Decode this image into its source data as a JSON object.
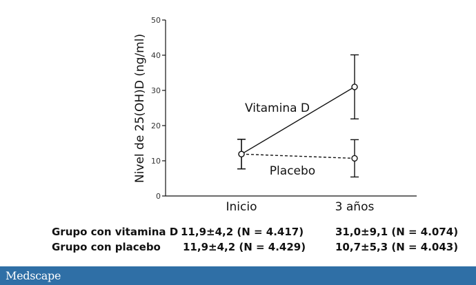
{
  "chart_data": {
    "type": "line",
    "ylabel": "Nivel de 25(OH)D (ng/ml)",
    "xlabel": "",
    "categories": [
      "Inicio",
      "3 años"
    ],
    "ylim": [
      0,
      50
    ],
    "yticks": [
      0,
      10,
      20,
      30,
      40,
      50
    ],
    "series": [
      {
        "name": "Vitamina D",
        "values": [
          11.9,
          31.0
        ],
        "error": [
          4.2,
          9.1
        ],
        "line_style": "solid"
      },
      {
        "name": "Placebo",
        "values": [
          11.9,
          10.7
        ],
        "error": [
          4.2,
          5.3
        ],
        "line_style": "dashed"
      }
    ],
    "grid": false
  },
  "table": {
    "rows": [
      {
        "label": "Grupo con vitamina D",
        "start": "11,9±4,2 (N = 4.417)",
        "end": "31,0±9,1 (N = 4.074)"
      },
      {
        "label": "Grupo con placebo",
        "start": "11,9±4,2 (N = 4.429)",
        "end": "10,7±5,3 (N = 4.043)"
      }
    ]
  },
  "footer": {
    "brand": "Medscape"
  },
  "colors": {
    "footer_bg": "#2f6fa6",
    "ink": "#111111"
  }
}
